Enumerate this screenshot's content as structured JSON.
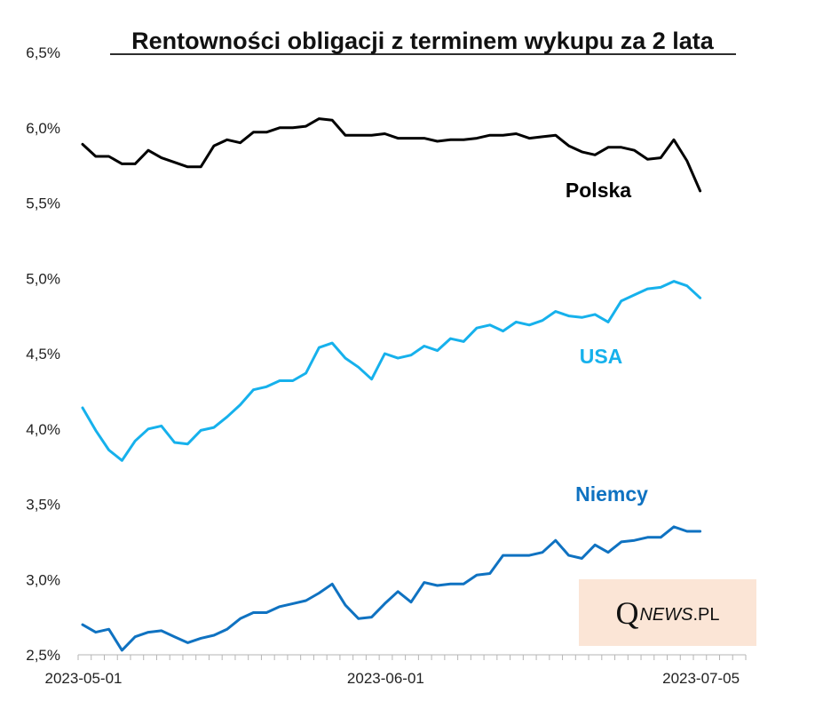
{
  "chart_data": {
    "type": "line",
    "title": "Rentowności obligacji z terminem wykupu za 2 lata",
    "xlabel": "",
    "ylabel": "",
    "ylim": [
      2.5,
      6.5
    ],
    "y_ticks": [
      {
        "value": 6.5,
        "label": "6,5%"
      },
      {
        "value": 6.0,
        "label": "6,0%"
      },
      {
        "value": 5.5,
        "label": "5,5%"
      },
      {
        "value": 5.0,
        "label": "5,0%"
      },
      {
        "value": 4.5,
        "label": "4,5%"
      },
      {
        "value": 4.0,
        "label": "4,0%"
      },
      {
        "value": 3.5,
        "label": "3,5%"
      },
      {
        "value": 3.0,
        "label": "3,0%"
      },
      {
        "value": 2.5,
        "label": "2,5%"
      }
    ],
    "x_range": [
      0,
      51
    ],
    "x_tick_count": 51,
    "x_ticks": [
      {
        "index": 0,
        "label": "2023-05-01"
      },
      {
        "index": 23,
        "label": "2023-06-01"
      },
      {
        "index": 47,
        "label": "2023-07-05"
      }
    ],
    "grid": false,
    "series": [
      {
        "name": "Polska",
        "color": "#000000",
        "values": [
          5.89,
          5.81,
          5.81,
          5.76,
          5.76,
          5.85,
          5.8,
          5.77,
          5.74,
          5.74,
          5.88,
          5.92,
          5.9,
          5.97,
          5.97,
          6.0,
          6.0,
          6.01,
          6.06,
          6.05,
          5.95,
          5.95,
          5.95,
          5.96,
          5.93,
          5.93,
          5.93,
          5.91,
          5.92,
          5.92,
          5.93,
          5.95,
          5.95,
          5.96,
          5.93,
          5.94,
          5.95,
          5.88,
          5.84,
          5.82,
          5.87,
          5.87,
          5.85,
          5.79,
          5.8,
          5.92,
          5.78,
          5.58
        ]
      },
      {
        "name": "USA",
        "color": "#16b1ec",
        "values": [
          4.14,
          3.99,
          3.86,
          3.79,
          3.92,
          4.0,
          4.02,
          3.91,
          3.9,
          3.99,
          4.01,
          4.08,
          4.16,
          4.26,
          4.28,
          4.32,
          4.32,
          4.37,
          4.54,
          4.57,
          4.47,
          4.41,
          4.33,
          4.5,
          4.47,
          4.49,
          4.55,
          4.52,
          4.6,
          4.58,
          4.67,
          4.69,
          4.65,
          4.71,
          4.69,
          4.72,
          4.78,
          4.75,
          4.74,
          4.76,
          4.71,
          4.85,
          4.89,
          4.93,
          4.94,
          4.98,
          4.95,
          4.87
        ]
      },
      {
        "name": "Niemcy",
        "color": "#0f72c1",
        "values": [
          2.7,
          2.65,
          2.67,
          2.53,
          2.62,
          2.65,
          2.66,
          2.62,
          2.58,
          2.61,
          2.63,
          2.67,
          2.74,
          2.78,
          2.78,
          2.82,
          2.84,
          2.86,
          2.91,
          2.97,
          2.83,
          2.74,
          2.75,
          2.84,
          2.92,
          2.85,
          2.98,
          2.96,
          2.97,
          2.97,
          3.03,
          3.04,
          3.16,
          3.16,
          3.16,
          3.18,
          3.26,
          3.16,
          3.14,
          3.23,
          3.18,
          3.25,
          3.26,
          3.28,
          3.28,
          3.35,
          3.32,
          3.32
        ]
      }
    ],
    "annotations": [
      {
        "text": "Polska",
        "series": "Polska"
      },
      {
        "text": "USA",
        "series": "USA"
      },
      {
        "text": "Niemcy",
        "series": "Niemcy"
      }
    ]
  },
  "watermark": {
    "q": "Q",
    "news": "NEWS",
    "pl": ".PL"
  }
}
